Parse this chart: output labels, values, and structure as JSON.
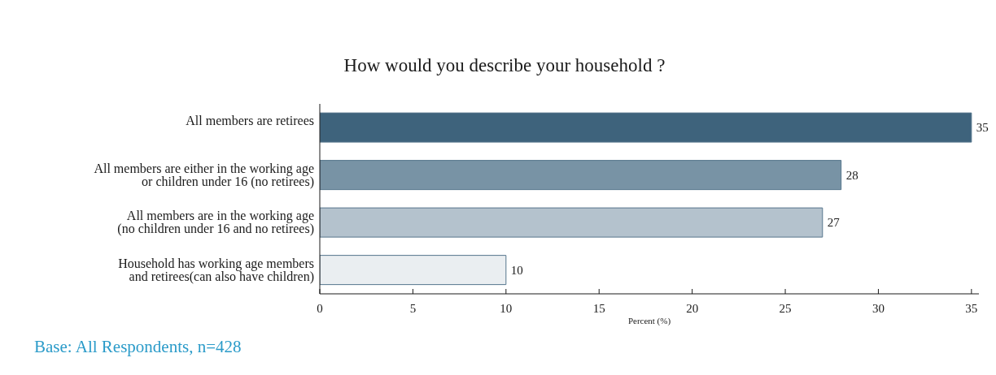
{
  "chart_data": {
    "type": "bar",
    "orientation": "horizontal",
    "title": "How would you describe your household ?",
    "xlabel": "Percent (%)",
    "categories": [
      "All members are retirees",
      "All members are either in the working age\nor children under 16 (no retirees)",
      "All members are in the working age\n(no children under 16 and no retirees)",
      "Household has working age members\nand retirees(can also have children)"
    ],
    "values": [
      35,
      28,
      27,
      10
    ],
    "colors": [
      "#3e637c",
      "#7893a5",
      "#b4c2cd",
      "#eaeef1"
    ],
    "xlim": [
      0,
      35.4
    ],
    "xticks": [
      0,
      5,
      10,
      15,
      20,
      25,
      30,
      35
    ],
    "data_labels": true,
    "annotations": [
      "Base: All Respondents, n=428"
    ]
  }
}
